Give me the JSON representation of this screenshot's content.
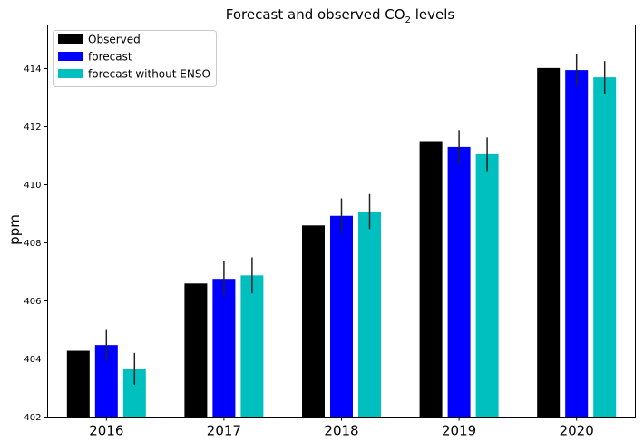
{
  "chart_data": {
    "type": "bar",
    "title_main": "Forecast and observed CO",
    "title_sub": "2",
    "title_tail": " levels",
    "xlabel": "",
    "ylabel": "ppm",
    "ylim": [
      402,
      415.5
    ],
    "yticks": [
      "402",
      "404",
      "406",
      "408",
      "410",
      "412",
      "414"
    ],
    "categories": [
      "2016",
      "2017",
      "2018",
      "2019",
      "2020"
    ],
    "legend_position": "top-left",
    "series": [
      {
        "name": "Observed",
        "color": "#000000",
        "values": [
          404.28,
          406.6,
          408.6,
          411.5,
          414.02
        ],
        "errors": null
      },
      {
        "name": "forecast",
        "color": "#0000ff",
        "values": [
          404.48,
          406.76,
          408.93,
          411.3,
          413.95
        ],
        "errors": [
          0.55,
          0.6,
          0.6,
          0.58,
          0.56
        ]
      },
      {
        "name": "forecast without ENSO",
        "color": "#00bfbf",
        "values": [
          403.66,
          406.88,
          409.08,
          411.05,
          413.7
        ],
        "errors": [
          0.55,
          0.62,
          0.6,
          0.58,
          0.56
        ]
      }
    ]
  }
}
